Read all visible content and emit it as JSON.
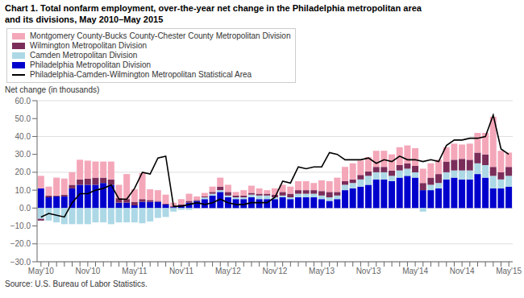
{
  "chart_data": {
    "type": "bar",
    "stacked": true,
    "grid": true,
    "legend": "top left",
    "title": "Chart 1. Total nonfarm employment, over-the-year net change in the Philadelphia metropolitan area\nand its divisions, May 2010–May 2015",
    "ylabel": "Net change (in thousands)",
    "annotations": [
      "Source: U.S. Bureau of Labor Statistics."
    ],
    "categories": [
      "May'10",
      null,
      null,
      null,
      null,
      null,
      "Nov'10",
      null,
      null,
      null,
      null,
      null,
      "May'11",
      null,
      null,
      null,
      null,
      null,
      "Nov'11",
      null,
      null,
      null,
      null,
      null,
      "May'12",
      null,
      null,
      null,
      null,
      null,
      "Nov'12",
      null,
      null,
      null,
      null,
      null,
      "May'13",
      null,
      null,
      null,
      null,
      null,
      "Nov'13",
      null,
      null,
      null,
      null,
      null,
      "May'14",
      null,
      null,
      null,
      null,
      null,
      "Nov'14",
      null,
      null,
      null,
      null,
      null,
      "May'15"
    ],
    "ylim": [
      -30,
      60
    ],
    "yticks": [
      {
        "value": -30,
        "label": "−30.0"
      },
      {
        "value": -20,
        "label": "−20.0"
      },
      {
        "value": -10,
        "label": "−10.0"
      },
      {
        "value": 0,
        "label": "0.0"
      },
      {
        "value": 10,
        "label": "10.0"
      },
      {
        "value": 20,
        "label": "20.0"
      },
      {
        "value": 30,
        "label": "30.0"
      },
      {
        "value": 40,
        "label": "40.0"
      },
      {
        "value": 50,
        "label": "50.0"
      },
      {
        "value": 60,
        "label": "60.0"
      }
    ],
    "series": [
      {
        "name": "Philadelphia Metropolitan Division",
        "type": "bar",
        "color": "#0000CD",
        "values": [
          11.0,
          6.0,
          6.5,
          6.5,
          11.0,
          13.0,
          13.0,
          13.0,
          14.0,
          13.0,
          3.0,
          3.0,
          1.5,
          3.5,
          3.5,
          3.5,
          2.0,
          0.5,
          1.5,
          3.0,
          4.0,
          5.0,
          7.0,
          9.0,
          6.0,
          5.0,
          5.0,
          6.0,
          5.0,
          5.0,
          5.0,
          6.0,
          5.0,
          6.0,
          6.0,
          6.0,
          5.0,
          4.0,
          5.0,
          10.0,
          11.0,
          12.0,
          13.0,
          16.0,
          16.0,
          15.0,
          17.0,
          18.0,
          17.0,
          10.0,
          10.0,
          11.0,
          16.0,
          17.0,
          16.0,
          16.0,
          19.0,
          17.0,
          11.0,
          11.0,
          12.0
        ]
      },
      {
        "name": "Camden Metropolitan Division",
        "type": "bar",
        "color": "#ADD8E6",
        "values": [
          -6.0,
          -7.0,
          -8.0,
          -9.0,
          -9.0,
          -9.0,
          -9.0,
          -8.0,
          -8.0,
          -9.0,
          -8.0,
          -8.0,
          -8.0,
          -8.5,
          -7.5,
          -5.5,
          -5.0,
          -2.0,
          -1.0,
          -1.0,
          0.0,
          1.0,
          1.0,
          1.0,
          1.0,
          1.0,
          1.0,
          1.5,
          2.0,
          2.0,
          1.0,
          1.0,
          1.0,
          2.0,
          2.0,
          2.0,
          2.0,
          2.0,
          2.0,
          3.0,
          3.0,
          4.0,
          5.0,
          4.0,
          4.0,
          3.0,
          4.0,
          4.0,
          3.0,
          -2.0,
          3.0,
          3.0,
          4.0,
          4.0,
          5.0,
          5.0,
          6.0,
          7.0,
          7.0,
          5.0,
          6.0
        ]
      },
      {
        "name": "Wilmington Metropolitan Division",
        "type": "bar",
        "color": "#7B2D5A",
        "values": [
          -1.0,
          1.0,
          0.5,
          1.0,
          2.0,
          3.0,
          3.5,
          4.0,
          3.0,
          3.0,
          2.5,
          2.0,
          2.0,
          1.5,
          1.0,
          0.5,
          0.5,
          0.5,
          0.5,
          1.0,
          0.5,
          0.5,
          1.0,
          2.0,
          2.0,
          1.0,
          1.0,
          1.0,
          1.0,
          1.0,
          1.5,
          2.0,
          2.0,
          2.0,
          2.0,
          2.0,
          2.5,
          3.0,
          2.0,
          2.0,
          2.0,
          2.5,
          2.5,
          3.0,
          3.0,
          3.0,
          3.0,
          3.0,
          3.5,
          4.0,
          4.0,
          5.0,
          6.0,
          6.0,
          6.5,
          6.0,
          6.0,
          6.0,
          5.0,
          4.0,
          5.0
        ]
      },
      {
        "name": "Montgomery County-Bucks County-Chester County Metropolitan Division",
        "type": "bar",
        "color": "#F4A7B9",
        "values": [
          7.0,
          5.0,
          10.0,
          9.0,
          7.0,
          11.0,
          10.0,
          9.0,
          9.0,
          10.0,
          7.5,
          14.0,
          7.0,
          14.5,
          6.0,
          6.0,
          5.0,
          2.0,
          3.0,
          4.0,
          2.0,
          2.0,
          3.0,
          5.0,
          4.0,
          2.0,
          3.0,
          4.0,
          3.0,
          2.0,
          3.5,
          4.0,
          4.0,
          5.0,
          5.0,
          4.0,
          6.0,
          6.0,
          8.0,
          8.0,
          9.0,
          8.0,
          8.0,
          9.0,
          9.0,
          9.0,
          10.0,
          10.0,
          10.0,
          8.0,
          8.0,
          8.0,
          8.0,
          9.0,
          8.0,
          9.0,
          11.0,
          12.0,
          28.0,
          12.0,
          8.0
        ]
      },
      {
        "name": "Philadelphia-Camden-Wilmington Metropolitan Statistical Area",
        "type": "line",
        "color": "#000000",
        "values": [
          -5.0,
          -3.0,
          -4.0,
          -5.0,
          3.0,
          8.0,
          8.0,
          10.0,
          11.0,
          13.0,
          5.0,
          5.0,
          11.0,
          20.0,
          19.0,
          28.0,
          29.0,
          1.0,
          1.0,
          2.0,
          3.0,
          2.0,
          3.0,
          5.0,
          3.0,
          2.0,
          2.0,
          3.0,
          3.0,
          3.0,
          6.0,
          15.0,
          14.0,
          23.0,
          22.0,
          23.0,
          23.0,
          31.0,
          30.0,
          27.0,
          27.0,
          27.0,
          28.0,
          25.0,
          27.0,
          26.0,
          29.0,
          27.0,
          27.0,
          26.0,
          27.0,
          26.0,
          35.0,
          38.0,
          38.0,
          39.0,
          39.0,
          40.0,
          52.0,
          33.0,
          30.0
        ]
      }
    ]
  }
}
